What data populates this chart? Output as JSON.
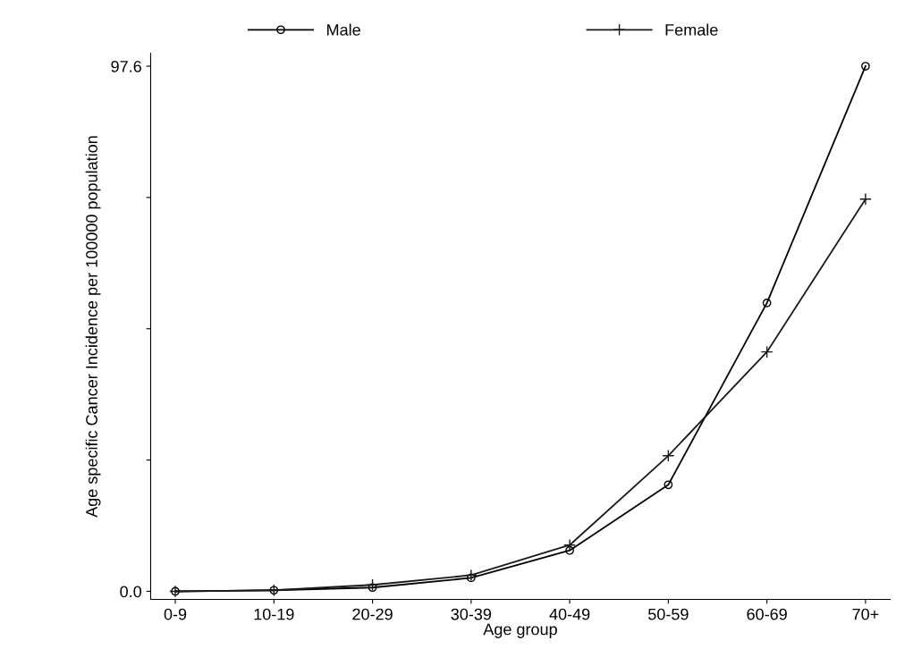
{
  "chart_data": {
    "type": "line",
    "xlabel": "Age group",
    "ylabel": "Age specific Cancer Incidence per 100000 population",
    "categories": [
      "0-9",
      "10-19",
      "20-29",
      "30-39",
      "40-49",
      "50-59",
      "60-69",
      "70+"
    ],
    "series": [
      {
        "name": "Male",
        "color": "#000000",
        "marker": "circle",
        "values": [
          0,
          0.2,
          0.7,
          2.5,
          7.6,
          19.8,
          53.6,
          97.6
        ]
      },
      {
        "name": "Female",
        "color": "#1a1a1a",
        "marker": "cross",
        "values": [
          0,
          0.2,
          1.2,
          3.0,
          8.6,
          25.2,
          44.5,
          72.9
        ]
      }
    ],
    "ylim": [
      -1.5,
      100
    ],
    "yticks": [
      {
        "value": 0,
        "label": "0.0"
      },
      {
        "value": 24.4,
        "label": null
      },
      {
        "value": 48.8,
        "label": null
      },
      {
        "value": 73.2,
        "label": null
      },
      {
        "value": 97.6,
        "label": "97.6"
      }
    ],
    "grid": false,
    "legend": "top",
    "line_style": "solid"
  }
}
